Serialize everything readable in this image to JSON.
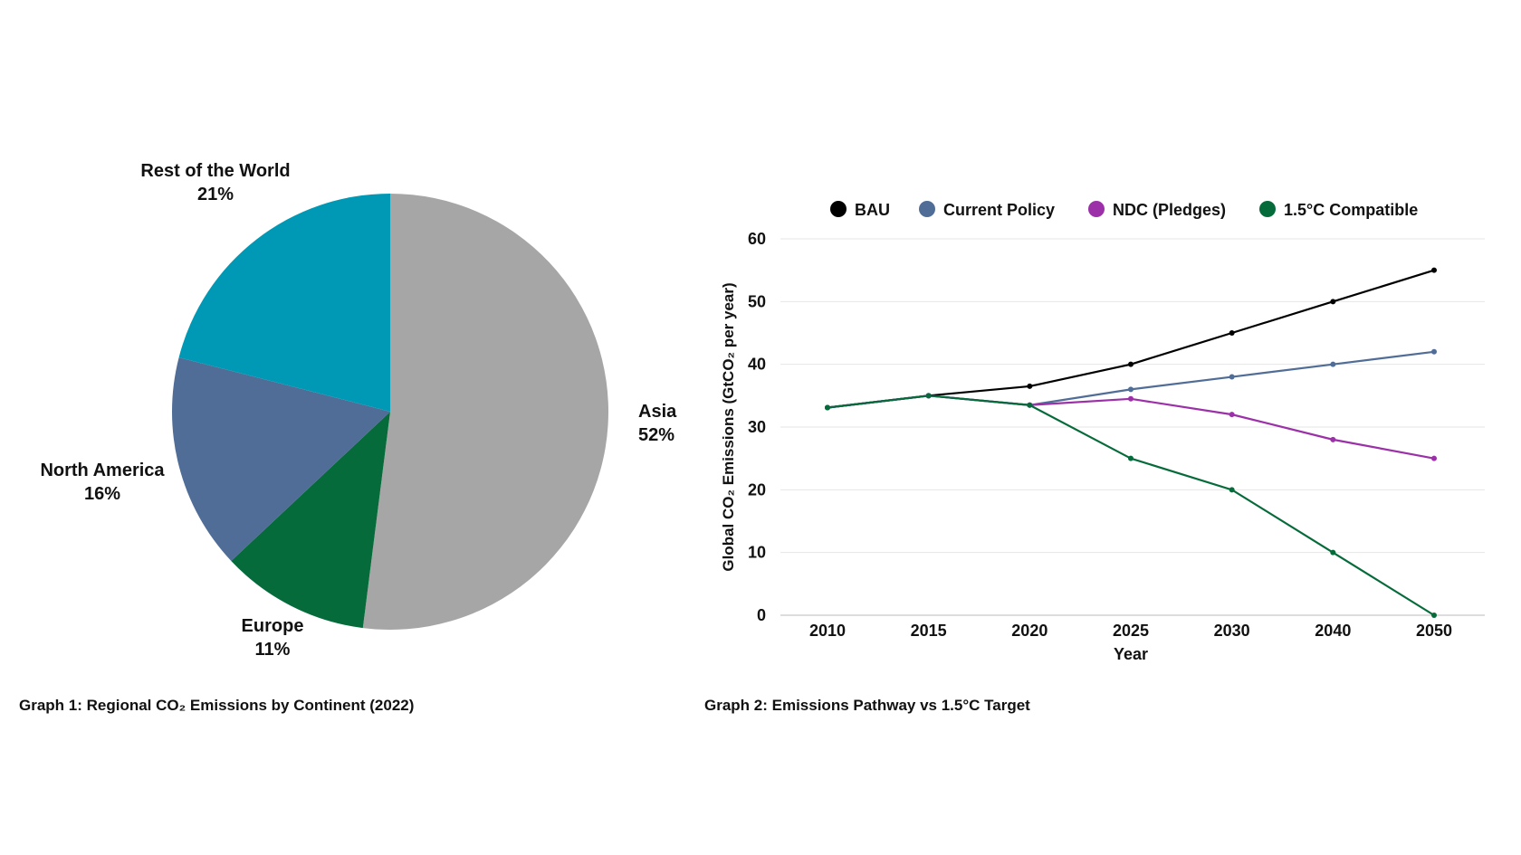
{
  "chart_data": [
    {
      "type": "pie",
      "caption": "Graph 1: Regional CO₂ Emissions by Continent (2022)",
      "slices": [
        {
          "label": "Asia",
          "value": 52,
          "pct_label": "52%",
          "color": "#a6a6a6"
        },
        {
          "label": "Europe",
          "value": 11,
          "pct_label": "11%",
          "color": "#066b3a"
        },
        {
          "label": "North America",
          "value": 16,
          "pct_label": "16%",
          "color": "#4f6d96"
        },
        {
          "label": "Rest of the World",
          "value": 21,
          "pct_label": "21%",
          "color": "#0099b5"
        }
      ]
    },
    {
      "type": "line",
      "caption": "Graph 2: Emissions Pathway vs 1.5°C Target",
      "xlabel": "Year",
      "ylabel": "Global CO₂ Emissions (GtCO₂ per year)",
      "categories": [
        "2010",
        "2015",
        "2020",
        "2025",
        "2030",
        "2040",
        "2050"
      ],
      "ylim": [
        0,
        60
      ],
      "yticks": [
        0,
        10,
        20,
        30,
        40,
        50,
        60
      ],
      "grid": true,
      "legend": "top",
      "series": [
        {
          "name": "BAU",
          "color": "#000000",
          "values": [
            33.1,
            35,
            36.5,
            40,
            45,
            50,
            55
          ]
        },
        {
          "name": "Current Policy",
          "color": "#4f6d96",
          "values": [
            33.1,
            35,
            33.5,
            36,
            38,
            40,
            42
          ]
        },
        {
          "name": "NDC (Pledges)",
          "color": "#9b30a8",
          "values": [
            33.1,
            35,
            33.5,
            34.5,
            32,
            28,
            25
          ]
        },
        {
          "name": "1.5°C Compatible",
          "color": "#066b3a",
          "values": [
            33.1,
            35,
            33.5,
            25,
            20,
            10,
            0
          ]
        }
      ]
    }
  ]
}
